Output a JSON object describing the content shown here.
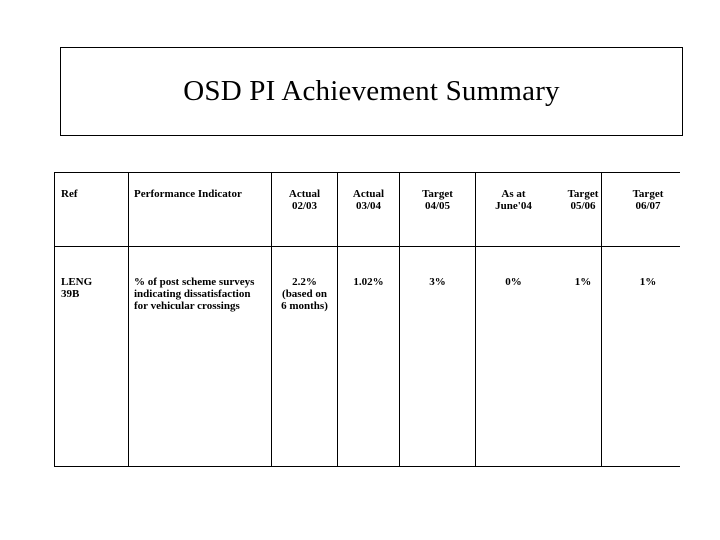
{
  "slide": {
    "title": "OSD PI Achievement Summary"
  },
  "table": {
    "headers": {
      "ref": "Ref",
      "indicator": "Performance Indicator",
      "actual_0203": "Actual\n02/03",
      "actual_0304": "Actual\n03/04",
      "target_0405": "Target\n04/05",
      "asat_june04": "As at\nJune'04",
      "target_0506": "Target\n05/06",
      "target_0607": "Target\n06/07"
    },
    "rows": [
      {
        "ref": "LENG\n39B",
        "indicator": "% of post scheme surveys\nindicating dissatisfaction\nfor vehicular crossings",
        "actual_0203": "2.2%\n(based on\n6 months)",
        "actual_0304": "1.02%",
        "target_0405": "3%",
        "asat_june04": "0%",
        "target_0506": "1%",
        "target_0607": "1%"
      }
    ]
  }
}
